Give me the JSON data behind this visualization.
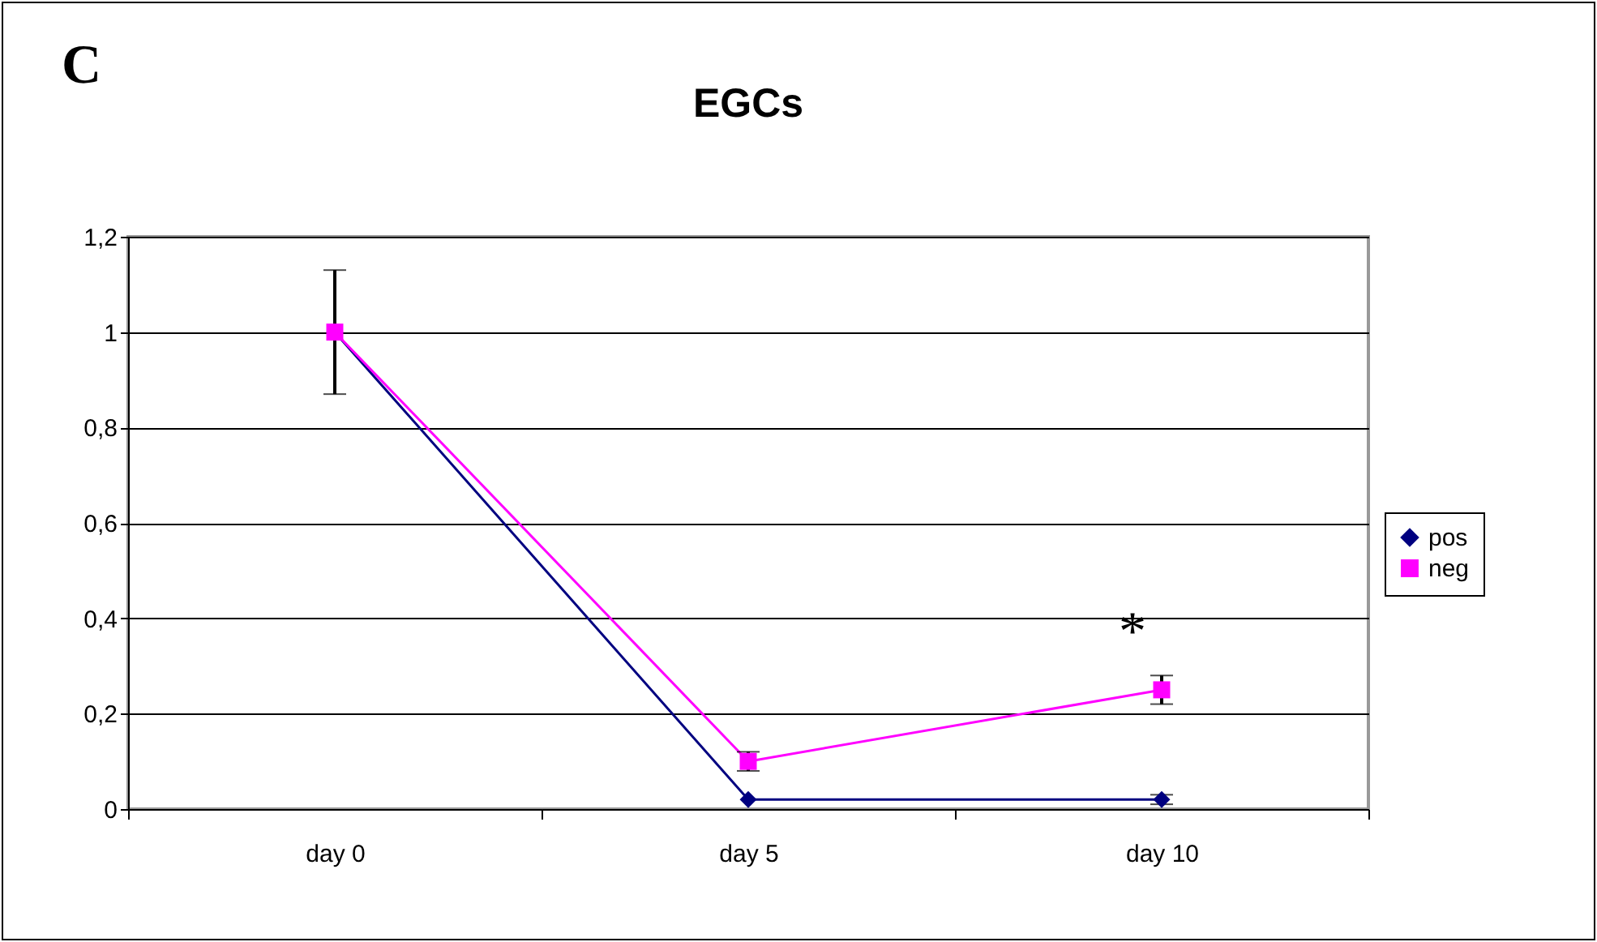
{
  "chart_data": {
    "type": "line",
    "title": "EGCs",
    "categories": [
      "day 0",
      "day 5",
      "day 10"
    ],
    "series": [
      {
        "name": "pos",
        "color": "#000080",
        "marker": "diamond",
        "values": [
          1,
          0.02,
          0.02
        ],
        "errors": [
          null,
          null,
          0.01
        ]
      },
      {
        "name": "neg",
        "color": "#ff00ff",
        "marker": "square",
        "values": [
          1,
          0.1,
          0.25
        ],
        "errors": [
          0.13,
          0.02,
          0.03
        ]
      }
    ],
    "ylim": [
      0,
      1.2
    ],
    "yticks": [
      0,
      {
        "value": 0.2,
        "label": "0,2"
      },
      {
        "value": 0.4,
        "label": "0,4"
      },
      {
        "value": 0.6,
        "label": "0,6"
      },
      {
        "value": 0.8,
        "label": "0,8"
      },
      1,
      {
        "value": 1.2,
        "label": "1,2"
      }
    ],
    "grid": "y",
    "legend": "right",
    "annotations": [
      "C",
      "*"
    ]
  }
}
